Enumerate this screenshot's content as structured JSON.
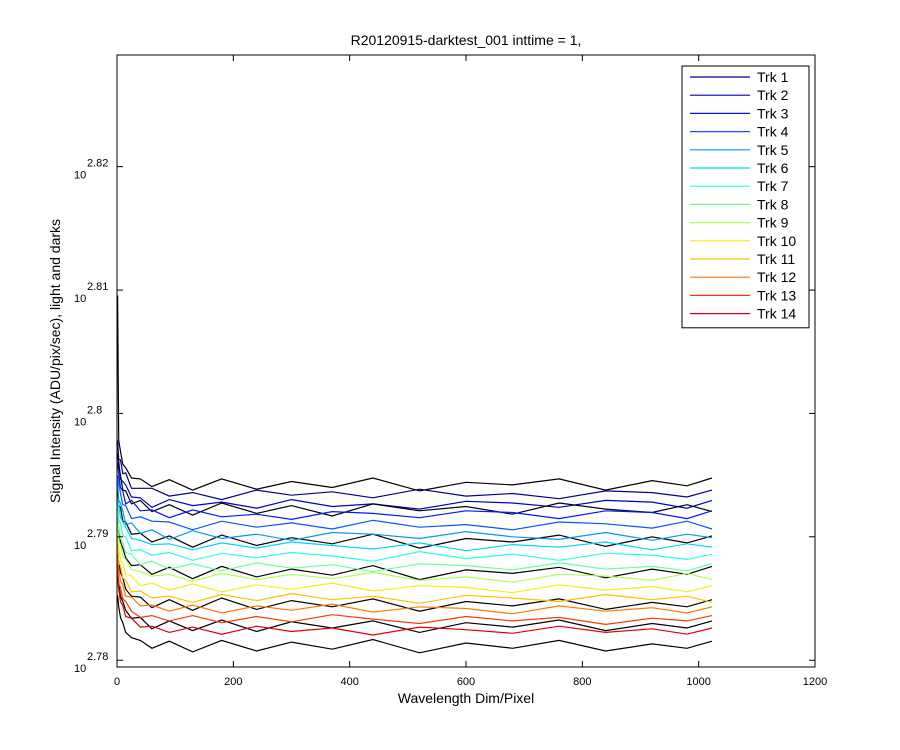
{
  "chart_data": {
    "type": "line",
    "title": "R20120915-darktest_001 inttime = 1,",
    "x_label": "Wavelength Dim/Pixel",
    "y_label": "Signal Intensity (ADU/pix/sec), light and darks",
    "log_y": true,
    "grid": false,
    "legend": "northeast",
    "xlim": [
      0,
      1200
    ],
    "xticks": [
      0,
      200,
      400,
      600,
      800,
      1000,
      1200
    ],
    "ylim": [
      601.8,
      674.6
    ],
    "yticks": [
      {
        "value": 602.56,
        "label": "10",
        "exponent": "2.78"
      },
      {
        "value": 616.6,
        "label": "10",
        "exponent": "2.79"
      },
      {
        "value": 630.96,
        "label": "10",
        "exponent": "2.8"
      },
      {
        "value": 645.65,
        "label": "10",
        "exponent": "2.81"
      },
      {
        "value": 660.69,
        "label": "10",
        "exponent": "2.82"
      }
    ],
    "x": [
      1,
      3,
      6,
      10,
      15,
      25,
      40,
      60,
      90,
      130,
      180,
      240,
      300,
      370,
      440,
      520,
      600,
      680,
      760,
      840,
      920,
      980,
      1023
    ],
    "darks": [
      {
        "color": "#000000",
        "values": [
          645.0,
          627.8,
          626.5,
          625.0,
          624.6,
          623.4,
          623.3,
          622.4,
          623.2,
          622.0,
          623.3,
          622.1,
          623.0,
          622.3,
          623.4,
          621.9,
          622.9,
          622.6,
          623.3,
          622.0,
          623.1,
          622.5,
          623.4
        ]
      },
      {
        "color": "#000000",
        "values": [
          626.3,
          624.9,
          623.7,
          622.0,
          621.9,
          620.4,
          620.8,
          619.5,
          620.3,
          619.1,
          620.5,
          619.3,
          620.2,
          619.0,
          620.4,
          619.6,
          620.1,
          619.2,
          620.5,
          619.8,
          619.4,
          620.3,
          619.5
        ]
      },
      {
        "color": "#000000",
        "values": [
          622.6,
          620.2,
          620.0,
          618.4,
          618.3,
          616.9,
          617.0,
          616.0,
          616.7,
          615.4,
          616.8,
          615.6,
          616.5,
          615.8,
          616.9,
          615.3,
          616.4,
          616.0,
          616.8,
          615.5,
          616.6,
          615.9,
          616.7
        ]
      },
      {
        "color": "#000000",
        "values": [
          618.8,
          617.4,
          616.0,
          615.3,
          614.2,
          613.3,
          613.4,
          612.3,
          613.1,
          611.8,
          613.2,
          612.0,
          612.9,
          612.2,
          613.3,
          611.7,
          612.8,
          612.4,
          613.1,
          611.9,
          612.9,
          612.3,
          613.2
        ]
      },
      {
        "color": "#000000",
        "values": [
          615.0,
          613.7,
          612.5,
          611.9,
          610.6,
          609.8,
          609.7,
          608.5,
          609.4,
          608.2,
          609.6,
          608.3,
          609.3,
          608.6,
          609.5,
          608.1,
          609.2,
          608.7,
          609.5,
          608.3,
          609.1,
          608.6,
          609.4
        ]
      },
      {
        "color": "#000000",
        "values": [
          612.3,
          611.3,
          609.8,
          609.2,
          608.2,
          607.3,
          607.4,
          606.1,
          607.0,
          605.9,
          607.1,
          605.8,
          606.9,
          606.2,
          607.0,
          605.7,
          606.8,
          606.3,
          607.1,
          605.9,
          606.7,
          606.2,
          607.0
        ]
      },
      {
        "color": "#000000",
        "values": [
          609.9,
          608.6,
          607.4,
          606.8,
          605.7,
          605.1,
          604.8,
          603.9,
          604.7,
          603.5,
          604.8,
          603.6,
          604.6,
          603.8,
          604.9,
          603.4,
          604.5,
          603.9,
          604.8,
          603.6,
          604.4,
          603.9,
          604.7
        ]
      }
    ],
    "series": [
      {
        "name": "Trk 1",
        "color": "#000090",
        "values": [
          627.8,
          625.6,
          625.5,
          623.9,
          624.0,
          622.2,
          622.2,
          622.2,
          621.3,
          621.7,
          620.9,
          622.0,
          621.4,
          621.8,
          621.1,
          622.1,
          621.3,
          621.6,
          621.0,
          621.9,
          621.7,
          621.2,
          622.0
        ]
      },
      {
        "name": "Trk 2",
        "color": "#0000c8",
        "values": [
          626.1,
          625.4,
          623.3,
          623.0,
          622.6,
          621.2,
          621.1,
          620.0,
          620.9,
          620.2,
          620.6,
          619.9,
          620.9,
          620.1,
          620.4,
          619.8,
          620.7,
          620.5,
          620.0,
          620.8,
          620.6,
          619.9,
          620.8
        ]
      },
      {
        "name": "Trk 3",
        "color": "#0018ff",
        "values": [
          625.2,
          623.9,
          622.3,
          621.9,
          620.4,
          620.8,
          619.6,
          619.7,
          618.8,
          619.7,
          618.9,
          619.2,
          618.6,
          619.5,
          619.3,
          618.8,
          619.6,
          619.4,
          618.7,
          619.6,
          619.4,
          618.7,
          619.6
        ]
      },
      {
        "name": "Trk 4",
        "color": "#0058ff",
        "values": [
          623.7,
          622.9,
          621.6,
          620.3,
          620.2,
          618.7,
          618.9,
          618.4,
          618.3,
          617.4,
          618.4,
          617.7,
          618.2,
          617.5,
          618.5,
          617.7,
          618.0,
          617.4,
          618.3,
          618.1,
          617.6,
          618.4,
          617.5
        ]
      },
      {
        "name": "Trk 5",
        "color": "#0098ff",
        "values": [
          623.1,
          620.8,
          620.5,
          619.6,
          618.0,
          618.2,
          617.0,
          617.4,
          616.3,
          617.3,
          616.4,
          616.9,
          616.2,
          617.1,
          616.9,
          616.4,
          617.2,
          616.6,
          616.3,
          617.1,
          616.2,
          616.9,
          616.5
        ]
      },
      {
        "name": "Trk 6",
        "color": "#00d4ff",
        "values": [
          621.0,
          620.3,
          618.8,
          618.3,
          617.7,
          616.4,
          616.2,
          615.7,
          615.8,
          615.1,
          615.9,
          615.3,
          616.0,
          615.6,
          615.2,
          615.9,
          615.0,
          615.7,
          615.4,
          616.0,
          615.1,
          615.8,
          615.4
        ]
      },
      {
        "name": "Trk 7",
        "color": "#28ffe0",
        "values": [
          620.5,
          618.6,
          618.1,
          616.7,
          616.6,
          615.0,
          615.1,
          614.5,
          614.8,
          613.9,
          614.7,
          614.2,
          614.8,
          614.4,
          613.8,
          614.9,
          614.1,
          614.6,
          613.9,
          614.7,
          614.5,
          614.0,
          614.6
        ]
      },
      {
        "name": "Trk 8",
        "color": "#68ffa0",
        "values": [
          618.9,
          617.8,
          616.4,
          615.9,
          614.8,
          614.6,
          613.4,
          613.8,
          612.9,
          613.5,
          612.7,
          613.6,
          613.0,
          613.4,
          612.6,
          613.5,
          613.3,
          612.8,
          613.6,
          612.9,
          613.2,
          612.7,
          613.5
        ]
      },
      {
        "name": "Trk 9",
        "color": "#b0ff58",
        "values": [
          618.2,
          616.1,
          615.7,
          614.3,
          614.0,
          612.8,
          612.6,
          612.1,
          612.3,
          611.5,
          612.4,
          611.7,
          612.3,
          611.8,
          612.5,
          611.6,
          612.0,
          611.4,
          612.3,
          612.1,
          611.6,
          612.4,
          611.7
        ]
      },
      {
        "name": "Trk 10",
        "color": "#f0f010",
        "values": [
          616.5,
          615.4,
          613.9,
          613.5,
          612.3,
          612.1,
          611.0,
          611.3,
          610.5,
          611.2,
          610.3,
          611.1,
          610.6,
          611.3,
          610.4,
          611.0,
          610.8,
          610.2,
          611.1,
          610.5,
          610.9,
          610.3,
          611.0
        ]
      },
      {
        "name": "Trk 11",
        "color": "#ffc000",
        "values": [
          615.8,
          613.6,
          613.3,
          611.9,
          611.6,
          610.3,
          610.4,
          609.6,
          609.8,
          609.1,
          610.0,
          609.3,
          610.1,
          609.4,
          609.8,
          609.0,
          609.9,
          609.6,
          609.2,
          610.0,
          609.4,
          609.8,
          609.1
        ]
      },
      {
        "name": "Trk 12",
        "color": "#ff7a00",
        "values": [
          614.1,
          613.0,
          611.5,
          611.1,
          609.8,
          609.7,
          608.7,
          608.8,
          608.1,
          608.8,
          607.9,
          608.7,
          608.2,
          608.9,
          608.0,
          608.6,
          608.4,
          607.8,
          608.7,
          608.1,
          608.5,
          607.9,
          608.6
        ]
      },
      {
        "name": "Trk 13",
        "color": "#ff3800",
        "values": [
          613.4,
          611.2,
          610.8,
          609.5,
          609.2,
          608.1,
          607.4,
          607.6,
          607.0,
          607.6,
          606.8,
          607.5,
          606.9,
          607.7,
          607.2,
          606.7,
          607.5,
          607.0,
          607.4,
          606.6,
          607.3,
          607.0,
          607.6
        ]
      },
      {
        "name": "Trk 14",
        "color": "#e00000",
        "values": [
          612.0,
          610.6,
          609.2,
          608.7,
          607.5,
          607.3,
          606.3,
          606.4,
          605.7,
          606.3,
          605.5,
          606.4,
          605.8,
          606.2,
          605.4,
          606.3,
          606.0,
          605.6,
          606.4,
          605.7,
          606.1,
          605.5,
          606.2
        ]
      }
    ]
  }
}
